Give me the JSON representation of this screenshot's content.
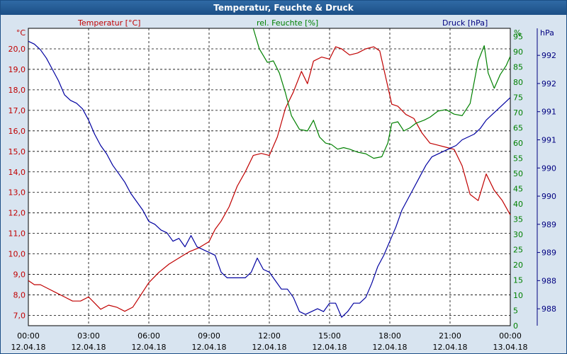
{
  "window": {
    "title": "Temperatur, Feuchte & Druck"
  },
  "chart_data": {
    "type": "line",
    "title": "Temperatur, Feuchte & Druck",
    "grid": true,
    "x_ticks": [
      {
        "hours": 0,
        "time": "00:00",
        "date": "12.04.18"
      },
      {
        "hours": 3,
        "time": "03:00",
        "date": "12.04.18"
      },
      {
        "hours": 6,
        "time": "06:00",
        "date": "12.04.18"
      },
      {
        "hours": 9,
        "time": "09:00",
        "date": "12.04.18"
      },
      {
        "hours": 12,
        "time": "12:00",
        "date": "12.04.18"
      },
      {
        "hours": 15,
        "time": "15:00",
        "date": "12.04.18"
      },
      {
        "hours": 18,
        "time": "18:00",
        "date": "12.04.18"
      },
      {
        "hours": 21,
        "time": "21:00",
        "date": "12.04.18"
      },
      {
        "hours": 24,
        "time": "00:00",
        "date": "13.04.18"
      }
    ],
    "xlim": [
      0,
      24
    ],
    "axes": {
      "temperature": {
        "unit": "°C",
        "label": "Temperatur [°C]",
        "ylim": [
          6.5,
          21
        ],
        "ticks": [
          "7,0",
          "8,0",
          "9,0",
          "10,0",
          "11,0",
          "12,0",
          "13,0",
          "14,0",
          "15,0",
          "16,0",
          "17,0",
          "18,0",
          "19,0",
          "20,0"
        ],
        "tick_values": [
          7,
          8,
          9,
          10,
          11,
          12,
          13,
          14,
          15,
          16,
          17,
          18,
          19,
          20
        ]
      },
      "humidity": {
        "unit": "%",
        "label": "rel. Feuchte [%]",
        "ylim": [
          0,
          97.7
        ],
        "ticks": [
          "0",
          "5",
          "10",
          "15",
          "20",
          "25",
          "30",
          "35",
          "40",
          "45",
          "50",
          "55",
          "60",
          "65",
          "70",
          "75",
          "80",
          "85",
          "90",
          "95"
        ],
        "tick_values": [
          0,
          5,
          10,
          15,
          20,
          25,
          30,
          35,
          40,
          45,
          50,
          55,
          60,
          65,
          70,
          75,
          80,
          85,
          90,
          95
        ]
      },
      "pressure": {
        "unit": "hPa",
        "label": "Druck [hPa]",
        "ylim": [
          987.45,
          992.73
        ],
        "ticks": [
          "988",
          "988",
          "989",
          "989",
          "990",
          "990",
          "991",
          "991",
          "992",
          "992"
        ],
        "tick_values": [
          987.75,
          988.25,
          988.75,
          989.25,
          989.75,
          990.25,
          990.75,
          991.25,
          991.75,
          992.25
        ]
      }
    },
    "series": [
      {
        "name": "Temperatur [°C]",
        "axis": "temperature",
        "color": "#c00000",
        "x": [
          0,
          0.3,
          0.6,
          1.0,
          1.4,
          1.8,
          2.2,
          2.6,
          3.0,
          3.3,
          3.6,
          4.0,
          4.4,
          4.8,
          5.2,
          5.6,
          6.0,
          6.5,
          7.0,
          7.5,
          8.0,
          8.5,
          9.0,
          9.3,
          9.6,
          10.0,
          10.4,
          10.8,
          11.2,
          11.6,
          12.0,
          12.4,
          12.8,
          13.2,
          13.6,
          13.9,
          14.2,
          14.6,
          15.0,
          15.3,
          15.6,
          16.0,
          16.4,
          16.8,
          17.2,
          17.5,
          17.8,
          18.1,
          18.4,
          18.8,
          19.2,
          19.6,
          20.0,
          20.4,
          20.8,
          21.2,
          21.6,
          22.0,
          22.4,
          22.8,
          23.2,
          23.6,
          24.0
        ],
        "values": [
          8.7,
          8.5,
          8.5,
          8.3,
          8.1,
          7.9,
          7.7,
          7.7,
          7.9,
          7.6,
          7.3,
          7.5,
          7.4,
          7.2,
          7.4,
          8.0,
          8.6,
          9.1,
          9.5,
          9.8,
          10.1,
          10.3,
          10.6,
          11.2,
          11.6,
          12.3,
          13.3,
          14.0,
          14.8,
          14.9,
          14.8,
          15.7,
          17.1,
          17.9,
          18.9,
          18.3,
          19.4,
          19.6,
          19.5,
          20.1,
          20.0,
          19.7,
          19.8,
          20.0,
          20.1,
          19.9,
          18.6,
          17.3,
          17.2,
          16.8,
          16.6,
          15.9,
          15.4,
          15.3,
          15.2,
          15.1,
          14.3,
          12.9,
          12.6,
          13.9,
          13.1,
          12.6,
          11.9
        ]
      },
      {
        "name": "rel. Feuchte [%]",
        "axis": "humidity",
        "color": "#008000",
        "x": [
          11.2,
          11.5,
          11.9,
          12.2,
          12.5,
          12.8,
          13.1,
          13.5,
          13.9,
          14.2,
          14.5,
          14.8,
          15.1,
          15.4,
          15.7,
          16.0,
          16.4,
          16.8,
          17.2,
          17.6,
          17.9,
          18.1,
          18.4,
          18.7,
          19.0,
          19.3,
          19.7,
          20.0,
          20.4,
          20.8,
          21.2,
          21.6,
          22.0,
          22.4,
          22.7,
          22.9,
          23.2,
          23.5,
          23.8,
          24.0
        ],
        "values": [
          97.7,
          91.0,
          86.5,
          87.0,
          83.0,
          76.5,
          69.0,
          64.5,
          64.0,
          67.5,
          62.0,
          60.0,
          59.5,
          58.0,
          58.5,
          58.0,
          57.0,
          56.5,
          55.0,
          55.5,
          60.0,
          66.5,
          67.0,
          64.0,
          65.0,
          66.5,
          67.5,
          68.5,
          70.5,
          71.0,
          69.5,
          69.0,
          73.0,
          87.0,
          92.0,
          83.0,
          78.0,
          82.5,
          85.5,
          88.5
        ]
      },
      {
        "name": "Druck [hPa]",
        "axis": "pressure",
        "color": "#0000a0",
        "x": [
          0,
          0.3,
          0.6,
          0.9,
          1.2,
          1.5,
          1.8,
          2.1,
          2.4,
          2.7,
          3.0,
          3.3,
          3.6,
          3.9,
          4.2,
          4.5,
          4.8,
          5.1,
          5.4,
          5.7,
          6.0,
          6.3,
          6.6,
          6.9,
          7.2,
          7.5,
          7.8,
          8.1,
          8.4,
          8.7,
          9.0,
          9.3,
          9.6,
          9.9,
          10.2,
          10.5,
          10.8,
          11.1,
          11.4,
          11.7,
          12.0,
          12.3,
          12.6,
          12.9,
          13.2,
          13.5,
          13.8,
          14.1,
          14.4,
          14.7,
          15.0,
          15.3,
          15.6,
          15.9,
          16.2,
          16.5,
          16.8,
          17.1,
          17.4,
          17.7,
          18.0,
          18.3,
          18.6,
          18.9,
          19.2,
          19.5,
          19.8,
          20.1,
          20.4,
          20.7,
          21.0,
          21.3,
          21.6,
          21.9,
          22.2,
          22.5,
          22.8,
          23.1,
          23.4,
          23.7,
          24.0
        ],
        "values": [
          992.5,
          992.45,
          992.35,
          992.2,
          992.0,
          991.8,
          991.55,
          991.45,
          991.4,
          991.3,
          991.1,
          990.85,
          990.65,
          990.5,
          990.3,
          990.15,
          990.0,
          989.8,
          989.65,
          989.5,
          989.3,
          989.25,
          989.15,
          989.1,
          988.95,
          989.0,
          988.85,
          989.05,
          988.85,
          988.8,
          988.75,
          988.7,
          988.4,
          988.3,
          988.3,
          988.3,
          988.3,
          988.4,
          988.65,
          988.45,
          988.4,
          988.25,
          988.1,
          988.1,
          987.95,
          987.7,
          987.65,
          987.7,
          987.75,
          987.7,
          987.85,
          987.85,
          987.6,
          987.7,
          987.85,
          987.85,
          987.95,
          988.2,
          988.5,
          988.7,
          988.95,
          989.2,
          989.5,
          989.7,
          989.9,
          990.1,
          990.3,
          990.45,
          990.5,
          990.55,
          990.6,
          990.65,
          990.75,
          990.8,
          990.85,
          990.95,
          991.1,
          991.2,
          991.3,
          991.4,
          991.5
        ]
      }
    ]
  }
}
